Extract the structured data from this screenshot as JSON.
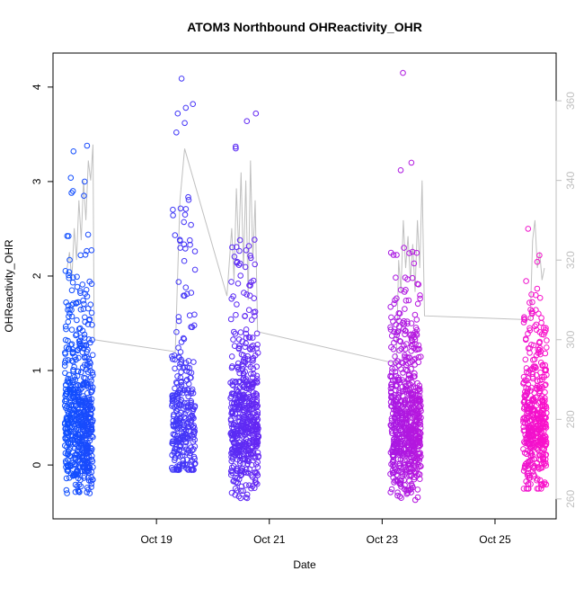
{
  "chart_data": {
    "type": "scatter",
    "title": "ATOM3 Northbound OHReactivity_OHR",
    "xlabel": "Date",
    "ylabel": "OHReactivity_OHR",
    "xlim": [
      "2016-10-17 04:00",
      "2016-10-26 02:00"
    ],
    "ylim": [
      -0.57,
      4.36
    ],
    "x_ticks": [
      {
        "label": "Oct 19",
        "value": "2016-10-19"
      },
      {
        "label": "Oct 21",
        "value": "2016-10-21"
      },
      {
        "label": "Oct 23",
        "value": "2016-10-23"
      },
      {
        "label": "Oct 25",
        "value": "2016-10-25"
      }
    ],
    "y_ticks": [
      0,
      1,
      2,
      3,
      4
    ],
    "secondary_axis": {
      "ticks": [
        260,
        280,
        300,
        320,
        340,
        360
      ],
      "ylim": [
        255,
        372
      ],
      "color": "#bfbfbf"
    },
    "grid": false,
    "legend": "none",
    "color_scale": [
      "#0a52ff",
      "#7a1df0",
      "#ff10c8"
    ],
    "series": [
      {
        "role": "primary-points",
        "clusters": [
          {
            "center": "2016-10-17 15:00",
            "width_hours": 12,
            "n": 600,
            "range": [
              -0.3,
              3.37
            ],
            "outliers": [
              3.38,
              3.32,
              3.04,
              3.0,
              2.9,
              2.88,
              2.85
            ]
          },
          {
            "center": "2016-10-19 11:30",
            "width_hours": 10,
            "n": 300,
            "range": [
              -0.05,
              3.8
            ],
            "outliers": [
              4.09,
              3.82,
              3.78,
              3.72,
              3.62,
              3.52
            ]
          },
          {
            "center": "2016-10-20 13:30",
            "width_hours": 12,
            "n": 520,
            "range": [
              -0.35,
              3.35
            ],
            "outliers": [
              3.72,
              3.64,
              3.37,
              3.35
            ]
          },
          {
            "center": "2016-10-23 10:00",
            "width_hours": 13,
            "n": 650,
            "range": [
              -0.37,
              3.2
            ],
            "outliers": [
              4.15,
              3.2,
              3.12
            ]
          },
          {
            "center": "2016-10-25 17:00",
            "width_hours": 10,
            "n": 420,
            "range": [
              -0.25,
              2.5
            ],
            "outliers": [
              2.5,
              2.22,
              2.15
            ]
          }
        ]
      },
      {
        "role": "secondary-line",
        "color": "#c0c0c0",
        "points": [
          {
            "x": "2016-10-17 10:00",
            "y": 318
          },
          {
            "x": "2016-10-17 11:00",
            "y": 322
          },
          {
            "x": "2016-10-17 12:00",
            "y": 315
          },
          {
            "x": "2016-10-17 13:00",
            "y": 328
          },
          {
            "x": "2016-10-17 14:00",
            "y": 320
          },
          {
            "x": "2016-10-17 15:00",
            "y": 335
          },
          {
            "x": "2016-10-17 16:00",
            "y": 325
          },
          {
            "x": "2016-10-17 17:00",
            "y": 340
          },
          {
            "x": "2016-10-17 18:00",
            "y": 330
          },
          {
            "x": "2016-10-17 19:00",
            "y": 345
          },
          {
            "x": "2016-10-17 20:00",
            "y": 340
          },
          {
            "x": "2016-10-17 21:00",
            "y": 349
          },
          {
            "x": "2016-10-17 21:30",
            "y": 300
          },
          {
            "x": "2016-10-19 08:00",
            "y": 297
          },
          {
            "x": "2016-10-19 10:00",
            "y": 335
          },
          {
            "x": "2016-10-19 12:00",
            "y": 348
          },
          {
            "x": "2016-10-20 06:00",
            "y": 311
          },
          {
            "x": "2016-10-20 08:00",
            "y": 328
          },
          {
            "x": "2016-10-20 09:00",
            "y": 315
          },
          {
            "x": "2016-10-20 10:00",
            "y": 338
          },
          {
            "x": "2016-10-20 11:00",
            "y": 322
          },
          {
            "x": "2016-10-20 12:00",
            "y": 342
          },
          {
            "x": "2016-10-20 13:00",
            "y": 318
          },
          {
            "x": "2016-10-20 14:00",
            "y": 340
          },
          {
            "x": "2016-10-20 15:00",
            "y": 310
          },
          {
            "x": "2016-10-20 16:00",
            "y": 345
          },
          {
            "x": "2016-10-20 17:00",
            "y": 320
          },
          {
            "x": "2016-10-20 18:00",
            "y": 335
          },
          {
            "x": "2016-10-20 19:00",
            "y": 302
          },
          {
            "x": "2016-10-23 06:00",
            "y": 294
          },
          {
            "x": "2016-10-23 07:00",
            "y": 320
          },
          {
            "x": "2016-10-23 08:00",
            "y": 312
          },
          {
            "x": "2016-10-23 09:00",
            "y": 330
          },
          {
            "x": "2016-10-23 10:00",
            "y": 318
          },
          {
            "x": "2016-10-23 11:00",
            "y": 326
          },
          {
            "x": "2016-10-23 12:00",
            "y": 315
          },
          {
            "x": "2016-10-23 13:00",
            "y": 324
          },
          {
            "x": "2016-10-23 14:00",
            "y": 312
          },
          {
            "x": "2016-10-23 15:00",
            "y": 330
          },
          {
            "x": "2016-10-23 16:00",
            "y": 318
          },
          {
            "x": "2016-10-23 17:00",
            "y": 340
          },
          {
            "x": "2016-10-23 18:00",
            "y": 306
          },
          {
            "x": "2016-10-25 15:00",
            "y": 305
          },
          {
            "x": "2016-10-25 16:00",
            "y": 325
          },
          {
            "x": "2016-10-25 17:00",
            "y": 330
          },
          {
            "x": "2016-10-25 18:00",
            "y": 318
          },
          {
            "x": "2016-10-25 19:00",
            "y": 322
          },
          {
            "x": "2016-10-25 20:00",
            "y": 315
          },
          {
            "x": "2016-10-25 21:00",
            "y": 318
          }
        ]
      }
    ]
  }
}
